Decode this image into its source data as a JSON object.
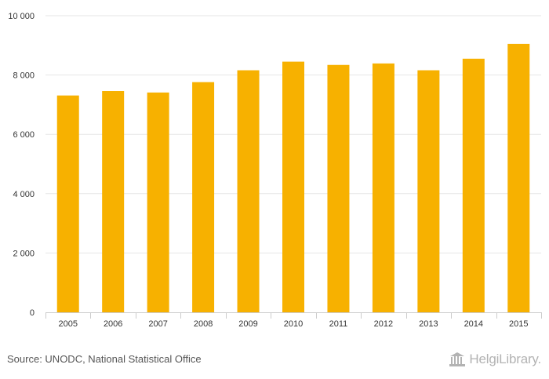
{
  "chart_data": {
    "type": "bar",
    "categories": [
      "2005",
      "2006",
      "2007",
      "2008",
      "2009",
      "2010",
      "2011",
      "2012",
      "2013",
      "2014",
      "2015"
    ],
    "values": [
      7310,
      7460,
      7410,
      7760,
      8160,
      8450,
      8340,
      8390,
      8160,
      8550,
      9050
    ],
    "ylim": [
      0,
      10000
    ],
    "yticks": [
      0,
      2000,
      4000,
      6000,
      8000,
      10000
    ],
    "ytick_labels": [
      "0",
      "2 000",
      "4 000",
      "6 000",
      "8 000",
      "10 000"
    ],
    "bar_color": "#f7b100",
    "grid": true,
    "title": "",
    "xlabel": "",
    "ylabel": ""
  },
  "footer": {
    "source": "Source: UNODC, National Statistical Office",
    "logo_text": "HelgiLibrary."
  }
}
